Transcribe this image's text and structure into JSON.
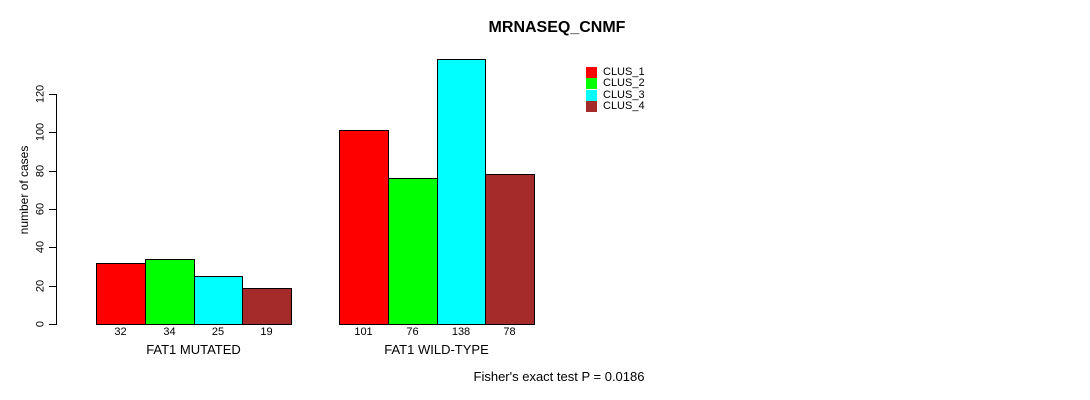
{
  "chart_data": {
    "type": "bar",
    "title": "MRNASEQ_CNMF",
    "ylabel": "number of cases",
    "xlabel": "",
    "categories": [
      "FAT1 MUTATED",
      "FAT1 WILD-TYPE"
    ],
    "series": [
      {
        "name": "CLUS_1",
        "color": "#FF0000",
        "values": [
          32,
          101
        ]
      },
      {
        "name": "CLUS_2",
        "color": "#00FF00",
        "values": [
          34,
          76
        ]
      },
      {
        "name": "CLUS_3",
        "color": "#00FFFF",
        "values": [
          25,
          138
        ]
      },
      {
        "name": "CLUS_4",
        "color": "#A52A2A",
        "values": [
          19,
          78
        ]
      }
    ],
    "y_ticks": [
      0,
      20,
      40,
      60,
      80,
      100,
      120
    ],
    "ylim": [
      0,
      138
    ],
    "grid": false,
    "bar_value_labels_shown": true,
    "legend_position": "top-right",
    "annotation": "Fisher's exact test P = 0.0186"
  }
}
